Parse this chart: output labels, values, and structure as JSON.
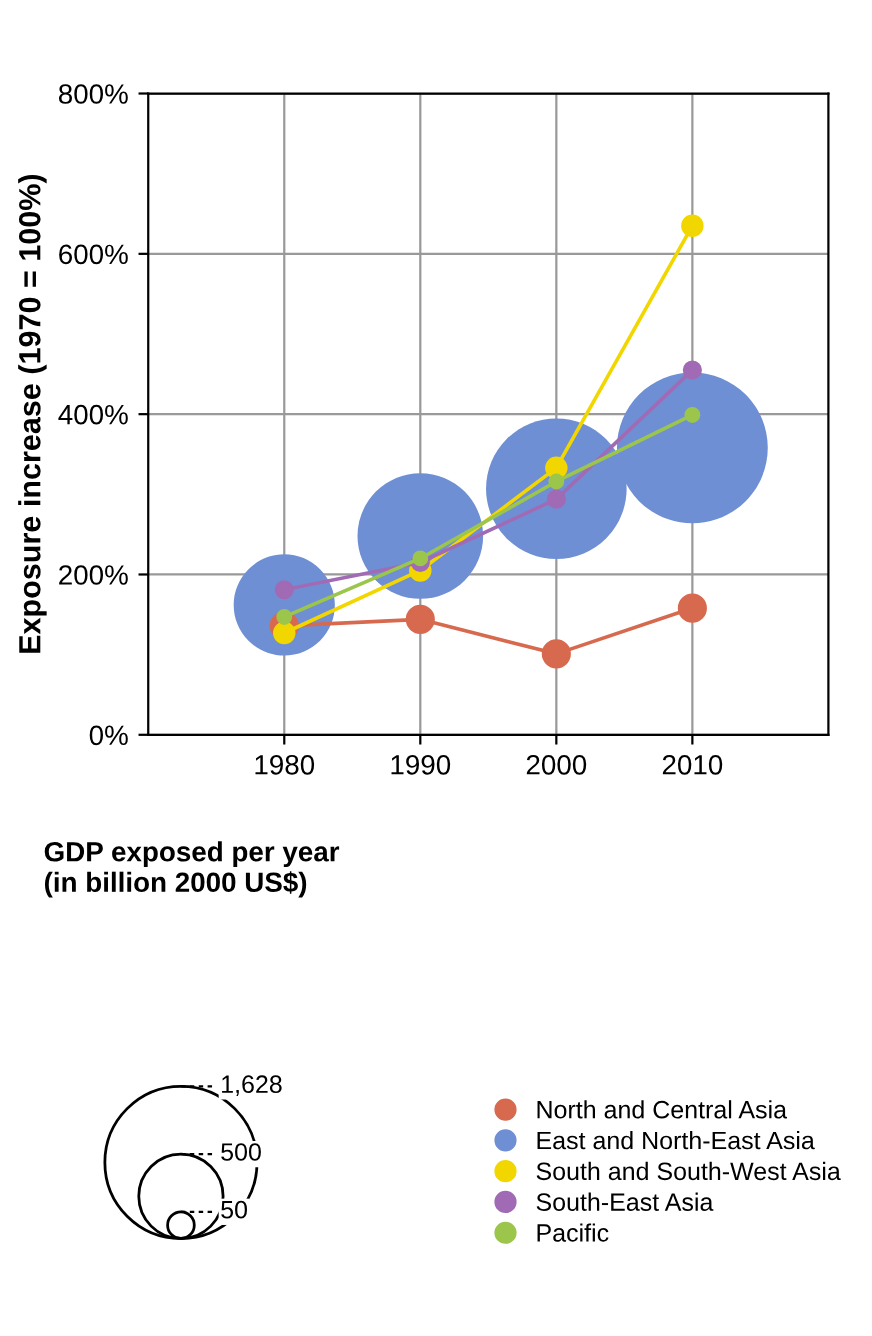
{
  "chart_data": {
    "type": "bubble",
    "ylabel": "Exposure increase (1970 = 100%)",
    "legend_title": "GDP exposed per year\n(in billion 2000 US$)",
    "x": [
      1980,
      1990,
      2000,
      2010
    ],
    "xlim": [
      1970,
      2020
    ],
    "xticks": [
      1980,
      1990,
      2000,
      2010
    ],
    "ylim": [
      0,
      800
    ],
    "yticks": [
      {
        "value": 0,
        "label": "0%"
      },
      {
        "value": 200,
        "label": "200%"
      },
      {
        "value": 400,
        "label": "400%"
      },
      {
        "value": 600,
        "label": "600%"
      },
      {
        "value": 800,
        "label": "800%"
      }
    ],
    "size_legend": [
      {
        "value": 1628,
        "label": "1,628"
      },
      {
        "value": 500,
        "label": "500"
      },
      {
        "value": 50,
        "label": "50"
      }
    ],
    "grid": true,
    "legend": "bottom",
    "marker": "circle",
    "series": [
      {
        "name": "North and Central Asia",
        "type": "line",
        "color": "#d7694f",
        "values": [
          136,
          144,
          101,
          158
        ]
      },
      {
        "name": "East and North-East Asia",
        "type": "bubble",
        "color": "#6f8fd4",
        "values": [
          162,
          248,
          307,
          358
        ],
        "sizes": [
          720,
          1110,
          1390,
          1600
        ]
      },
      {
        "name": "South and South-West Asia",
        "type": "line",
        "color": "#f2d600",
        "values": [
          127,
          205,
          333,
          635
        ]
      },
      {
        "name": "South-East Asia",
        "type": "line",
        "color": "#a06bb4",
        "values": [
          181,
          215,
          294,
          455
        ]
      },
      {
        "name": "Pacific",
        "type": "line",
        "color": "#9cc54c",
        "values": [
          147,
          220,
          316,
          399
        ]
      }
    ]
  }
}
